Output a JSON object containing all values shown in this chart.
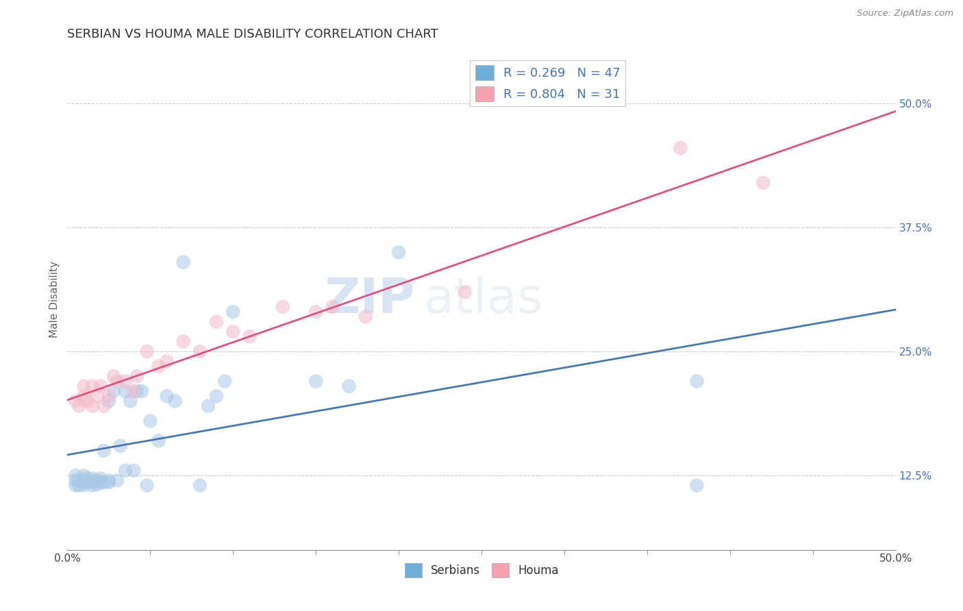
{
  "title": "SERBIAN VS HOUMA MALE DISABILITY CORRELATION CHART",
  "source": "Source: ZipAtlas.com",
  "ylabel": "Male Disability",
  "xlim": [
    0.0,
    0.5
  ],
  "ylim": [
    0.05,
    0.555
  ],
  "xtick_positions": [
    0.0,
    0.5
  ],
  "xtick_labels": [
    "0.0%",
    "50.0%"
  ],
  "yticks_right": [
    0.125,
    0.25,
    0.375,
    0.5
  ],
  "ytick_labels_right": [
    "12.5%",
    "25.0%",
    "37.5%",
    "50.0%"
  ],
  "serbian_color": "#a8c8e8",
  "houma_color": "#f4b8c8",
  "serbian_line_color": "#4878b0",
  "houma_line_color": "#e05080",
  "legend_label_1": "R = 0.269   N = 47",
  "legend_label_2": "R = 0.804   N = 31",
  "legend_color_1": "#6baed6",
  "legend_color_2": "#f4a0b0",
  "background_color": "#ffffff",
  "watermark_zip": "ZIP",
  "watermark_atlas": "atlas",
  "grid_color": "#cccccc",
  "serbian_x": [
    0.005,
    0.005,
    0.005,
    0.007,
    0.007,
    0.01,
    0.01,
    0.01,
    0.012,
    0.012,
    0.015,
    0.015,
    0.015,
    0.018,
    0.018,
    0.02,
    0.02,
    0.022,
    0.022,
    0.025,
    0.025,
    0.025,
    0.028,
    0.03,
    0.032,
    0.035,
    0.035,
    0.038,
    0.04,
    0.042,
    0.045,
    0.048,
    0.05,
    0.055,
    0.06,
    0.065,
    0.07,
    0.08,
    0.085,
    0.09,
    0.095,
    0.1,
    0.15,
    0.17,
    0.2,
    0.38,
    0.38
  ],
  "serbian_y": [
    0.115,
    0.12,
    0.125,
    0.115,
    0.12,
    0.115,
    0.12,
    0.125,
    0.118,
    0.122,
    0.115,
    0.118,
    0.122,
    0.116,
    0.12,
    0.118,
    0.122,
    0.118,
    0.15,
    0.118,
    0.12,
    0.2,
    0.21,
    0.12,
    0.155,
    0.13,
    0.21,
    0.2,
    0.13,
    0.21,
    0.21,
    0.115,
    0.18,
    0.16,
    0.205,
    0.2,
    0.34,
    0.115,
    0.195,
    0.205,
    0.22,
    0.29,
    0.22,
    0.215,
    0.35,
    0.115,
    0.22
  ],
  "houma_x": [
    0.005,
    0.007,
    0.01,
    0.01,
    0.012,
    0.015,
    0.015,
    0.018,
    0.02,
    0.022,
    0.025,
    0.028,
    0.03,
    0.035,
    0.04,
    0.042,
    0.048,
    0.055,
    0.06,
    0.07,
    0.08,
    0.09,
    0.1,
    0.11,
    0.13,
    0.15,
    0.16,
    0.18,
    0.24,
    0.37,
    0.42
  ],
  "houma_y": [
    0.2,
    0.195,
    0.205,
    0.215,
    0.2,
    0.195,
    0.215,
    0.205,
    0.215,
    0.195,
    0.205,
    0.225,
    0.22,
    0.22,
    0.21,
    0.225,
    0.25,
    0.235,
    0.24,
    0.26,
    0.25,
    0.28,
    0.27,
    0.265,
    0.295,
    0.29,
    0.295,
    0.285,
    0.31,
    0.455,
    0.42
  ]
}
